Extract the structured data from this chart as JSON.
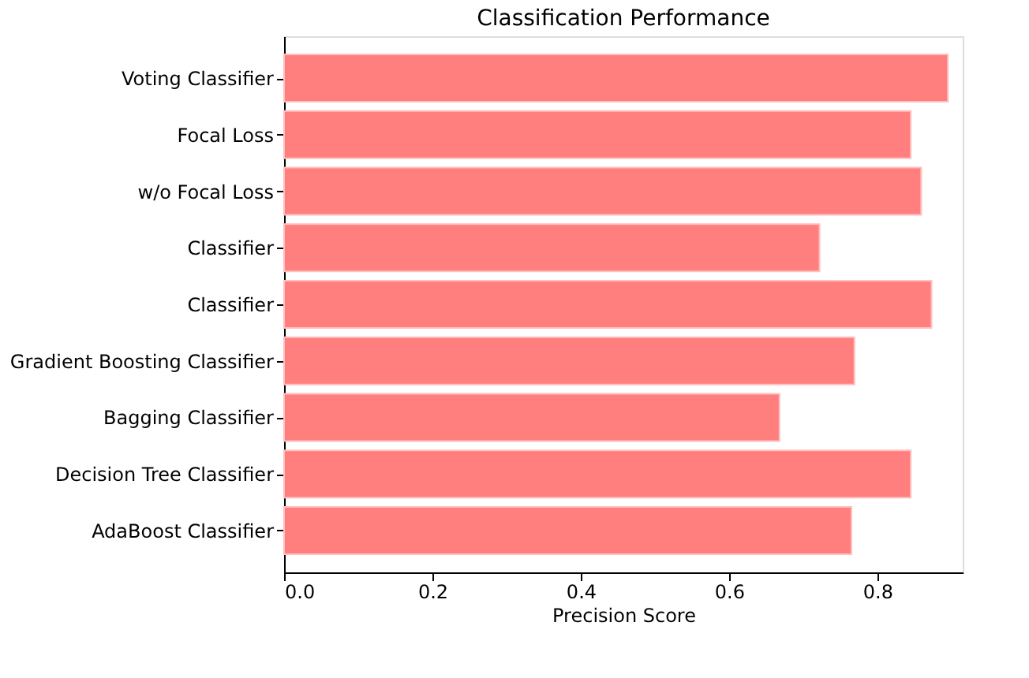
{
  "chart_data": {
    "type": "bar",
    "orientation": "horizontal",
    "title": "Classification Performance",
    "xlabel": "Precision Score",
    "categories": [
      "Voting Classifier",
      "Focal Loss",
      "w/o Focal Loss",
      "Classifier",
      "Classifier",
      "Gradient Boosting Classifier",
      "Bagging Classifier",
      "Decision Tree Classifier",
      "AdaBoost Classifier"
    ],
    "values": [
      0.895,
      0.845,
      0.859,
      0.722,
      0.873,
      0.769,
      0.668,
      0.845,
      0.765
    ],
    "color": "#ff7f7f",
    "xlim": [
      0,
      0.915
    ],
    "xticks": [
      {
        "value": 0,
        "label": "0.0"
      },
      0.2,
      0.4,
      0.6,
      0.8
    ],
    "grid": false
  }
}
